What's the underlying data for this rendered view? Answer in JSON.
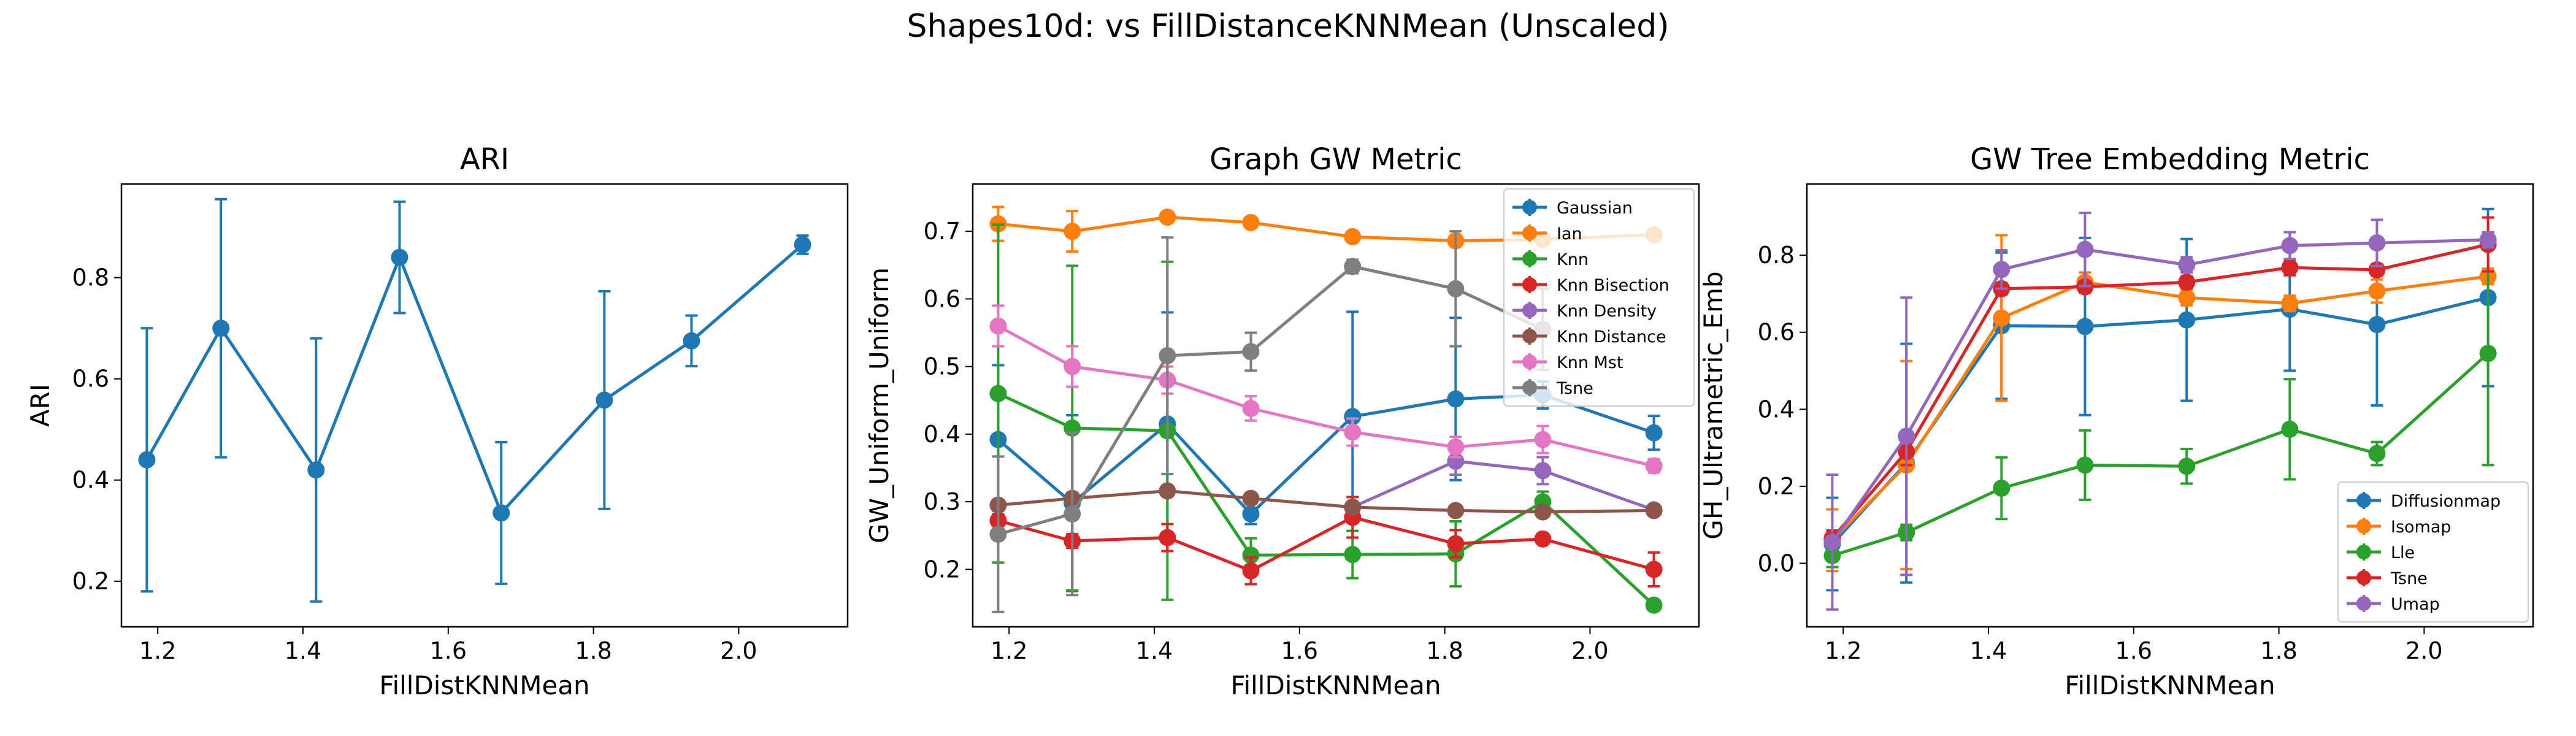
{
  "figure": {
    "title": "Shapes10d: vs FillDistanceKNNMean (Unscaled)"
  },
  "chart_data": [
    {
      "type": "line",
      "title": "ARI",
      "xlabel": "FillDistKNNMean",
      "ylabel": "ARI",
      "xlim": [
        1.15,
        2.15
      ],
      "ylim": [
        0.11,
        0.985
      ],
      "xticks": [
        1.2,
        1.4,
        1.6,
        1.8,
        2.0
      ],
      "yticks": [
        0.2,
        0.4,
        0.6,
        0.8
      ],
      "x": [
        1.185,
        1.287,
        1.418,
        1.533,
        1.673,
        1.815,
        1.935,
        2.088
      ],
      "legend": "none",
      "series": [
        {
          "name": "",
          "color": "#1f77b4",
          "values": [
            0.44,
            0.7,
            0.42,
            0.84,
            0.335,
            0.558,
            0.675,
            0.865
          ],
          "errors": [
            0.26,
            0.255,
            0.26,
            0.11,
            0.14,
            0.215,
            0.05,
            0.018
          ]
        }
      ]
    },
    {
      "type": "line",
      "title": "Graph GW Metric",
      "xlabel": "FillDistKNNMean",
      "ylabel": "GW_Uniform_Uniform",
      "xlim": [
        1.15,
        2.15
      ],
      "ylim": [
        0.115,
        0.77
      ],
      "xticks": [
        1.2,
        1.4,
        1.6,
        1.8,
        2.0
      ],
      "yticks": [
        0.2,
        0.3,
        0.4,
        0.5,
        0.6,
        0.7
      ],
      "x": [
        1.185,
        1.287,
        1.418,
        1.533,
        1.673,
        1.815,
        1.935,
        2.088
      ],
      "legend": "top-right",
      "series": [
        {
          "name": "Gaussian",
          "color": "#1f77b4",
          "values": [
            0.392,
            0.298,
            0.415,
            0.282,
            0.426,
            0.452,
            0.458,
            0.402
          ],
          "errors": [
            0.11,
            0.13,
            0.165,
            0.015,
            0.155,
            0.12,
            0.02,
            0.025
          ]
        },
        {
          "name": "Ian",
          "color": "#ff7f0e",
          "values": [
            0.711,
            0.7,
            0.721,
            0.713,
            0.692,
            0.686,
            0.688,
            0.695
          ],
          "errors": [
            0.025,
            0.03,
            0.005,
            0.005,
            0.005,
            0.008,
            0.005,
            0.005
          ]
        },
        {
          "name": "Knn",
          "color": "#2ca02c",
          "values": [
            0.46,
            0.409,
            0.405,
            0.221,
            0.222,
            0.223,
            0.3,
            0.147
          ],
          "errors": [
            0.25,
            0.24,
            0.25,
            0.025,
            0.035,
            0.048,
            0.015,
            0.005
          ]
        },
        {
          "name": "Knn Bisection",
          "color": "#d62728",
          "values": [
            0.272,
            0.242,
            0.247,
            0.198,
            0.277,
            0.238,
            0.245,
            0.2
          ],
          "errors": [
            0.015,
            0.01,
            0.02,
            0.02,
            0.03,
            0.02,
            0.005,
            0.025
          ]
        },
        {
          "name": "Knn Density",
          "color": "#9467bd",
          "values": [
            null,
            null,
            null,
            null,
            0.292,
            0.36,
            0.346,
            0.288
          ],
          "errors": [
            null,
            null,
            null,
            null,
            0.005,
            0.02,
            0.02,
            0.005
          ]
        },
        {
          "name": "Knn Distance",
          "color": "#8c564b",
          "values": [
            0.295,
            0.305,
            0.316,
            0.305,
            0.292,
            0.287,
            0.285,
            0.287
          ],
          "errors": [
            0.005,
            0.005,
            0.005,
            0.005,
            0.005,
            0.005,
            0.005,
            0.005
          ]
        },
        {
          "name": "Knn Mst",
          "color": "#e377c2",
          "values": [
            0.56,
            0.5,
            0.48,
            0.438,
            0.403,
            0.381,
            0.392,
            0.353
          ],
          "errors": [
            0.03,
            0.03,
            0.02,
            0.018,
            0.02,
            0.015,
            0.02,
            0.01
          ]
        },
        {
          "name": "Tsne",
          "color": "#7f7f7f",
          "values": [
            0.252,
            0.282,
            0.516,
            0.522,
            0.648,
            0.615,
            0.555,
            null
          ],
          "errors": [
            0.115,
            0.12,
            0.175,
            0.028,
            0.01,
            0.085,
            0.06,
            null
          ]
        }
      ]
    },
    {
      "type": "line",
      "title": "GW Tree Embedding Metric",
      "xlabel": "FillDistKNNMean",
      "ylabel": "GH_Ultrametric_Emb",
      "xlim": [
        1.15,
        2.15
      ],
      "ylim": [
        -0.165,
        0.985
      ],
      "xticks": [
        1.2,
        1.4,
        1.6,
        1.8,
        2.0
      ],
      "yticks": [
        0.0,
        0.2,
        0.4,
        0.6,
        0.8
      ],
      "x": [
        1.185,
        1.287,
        1.418,
        1.533,
        1.673,
        1.815,
        1.935,
        2.088
      ],
      "legend": "bottom-right",
      "series": [
        {
          "name": "Diffusionmap",
          "color": "#1f77b4",
          "values": [
            0.05,
            0.26,
            0.617,
            0.615,
            0.632,
            0.66,
            0.62,
            0.69
          ],
          "errors": [
            0.12,
            0.31,
            0.19,
            0.23,
            0.21,
            0.16,
            0.21,
            0.23
          ]
        },
        {
          "name": "Isomap",
          "color": "#ff7f0e",
          "values": [
            0.06,
            0.255,
            0.637,
            0.73,
            0.69,
            0.675,
            0.707,
            0.745
          ],
          "errors": [
            0.08,
            0.27,
            0.215,
            0.025,
            0.02,
            0.02,
            0.03,
            0.02
          ]
        },
        {
          "name": "Lle",
          "color": "#2ca02c",
          "values": [
            0.02,
            0.08,
            0.195,
            0.255,
            0.252,
            0.348,
            0.285,
            0.545
          ],
          "errors": [
            0.03,
            0.02,
            0.08,
            0.09,
            0.045,
            0.13,
            0.03,
            0.29
          ]
        },
        {
          "name": "Tsne",
          "color": "#d62728",
          "values": [
            0.065,
            0.29,
            0.713,
            0.718,
            0.73,
            0.768,
            0.762,
            0.828
          ],
          "errors": [
            0.02,
            0.035,
            0.015,
            0.015,
            0.015,
            0.02,
            0.015,
            0.07
          ]
        },
        {
          "name": "Umap",
          "color": "#9467bd",
          "values": [
            0.055,
            0.33,
            0.763,
            0.815,
            0.775,
            0.825,
            0.832,
            0.84
          ],
          "errors": [
            0.175,
            0.36,
            0.05,
            0.095,
            0.02,
            0.035,
            0.06,
            0.02
          ]
        }
      ]
    }
  ]
}
